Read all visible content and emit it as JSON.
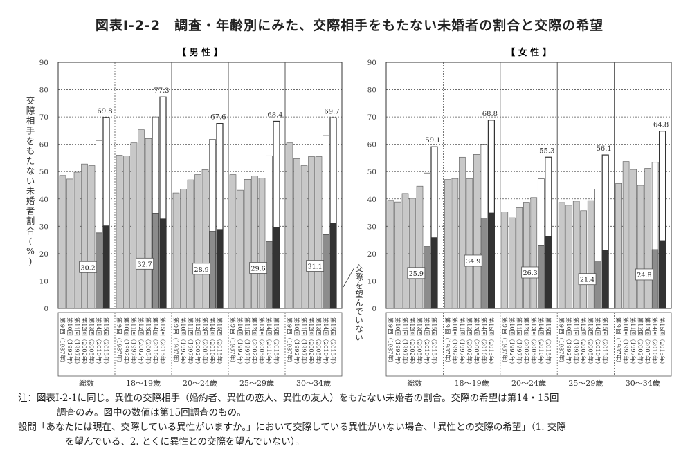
{
  "title": "図表Ⅰ-2-2　調査・年齢別にみた、交際相手をもたない未婚者の割合と交際の希望",
  "chart_data": [
    {
      "type": "bar",
      "panel_title": "【 男 性 】",
      "ylabel": "交際相手をもたない未婚者割合(%)",
      "ylim": [
        0,
        90
      ],
      "yticks": [
        "0",
        "10",
        "20",
        "30",
        "40",
        "50",
        "60",
        "70",
        "80",
        "90"
      ],
      "group_labels": [
        "総数",
        "18～19歳",
        "20～24歳",
        "25～29歳",
        "30～34歳"
      ],
      "survey_labels": [
        "第９回（1987年）",
        "第10回（1992年）",
        "第11回（1997年）",
        "第12回（2002年）",
        "第13回（2005年）",
        "第14回（2010年）",
        "第15回（2015年）"
      ],
      "series": [
        {
          "name": "交際相手をもたない未婚者割合",
          "values": [
            [
              48.6,
              47.3,
              49.8,
              52.8,
              52.2,
              61.4,
              69.8
            ],
            [
              56.0,
              55.7,
              60.5,
              65.3,
              62.1,
              70.0,
              77.3
            ],
            [
              42.2,
              43.6,
              47.0,
              48.9,
              50.7,
              61.8,
              67.6
            ],
            [
              48.9,
              43.2,
              47.2,
              48.4,
              47.6,
              55.8,
              68.4
            ],
            [
              60.5,
              54.8,
              52.2,
              55.5,
              55.5,
              63.2,
              69.7
            ]
          ]
        },
        {
          "name": "交際を望んでいない",
          "values": [
            [
              null,
              null,
              null,
              null,
              null,
              27.6,
              30.2
            ],
            [
              null,
              null,
              null,
              null,
              null,
              34.8,
              32.7
            ],
            [
              null,
              null,
              null,
              null,
              null,
              28.2,
              28.9
            ],
            [
              null,
              null,
              null,
              null,
              null,
              24.5,
              29.6
            ],
            [
              null,
              null,
              null,
              null,
              null,
              27.0,
              31.1
            ]
          ]
        }
      ],
      "top_labels": [
        "69.8",
        "77.3",
        "67.6",
        "68.4",
        "69.7"
      ],
      "inner_labels": [
        "30.2",
        "32.7",
        "28.9",
        "29.6",
        "31.1"
      ],
      "annotation": "交際を望んでいない"
    },
    {
      "type": "bar",
      "panel_title": "【 女 性 】",
      "ylim": [
        0,
        90
      ],
      "yticks": [
        "0",
        "10",
        "20",
        "30",
        "40",
        "50",
        "60",
        "70",
        "80",
        "90"
      ],
      "group_labels": [
        "総数",
        "18～19歳",
        "20～24歳",
        "25～29歳",
        "30～34歳"
      ],
      "survey_labels": [
        "第９回（1987年）",
        "第10回（1992年）",
        "第11回（1997年）",
        "第12回（2002年）",
        "第13回（2005年）",
        "第14回（2010年）",
        "第15回（2015年）"
      ],
      "series": [
        {
          "name": "交際相手をもたない未婚者割合",
          "values": [
            [
              39.5,
              38.9,
              42.0,
              40.2,
              44.7,
              49.5,
              59.1
            ],
            [
              47.1,
              47.5,
              55.3,
              47.4,
              56.3,
              60.0,
              68.8
            ],
            [
              35.3,
              33.1,
              36.8,
              38.8,
              40.5,
              47.4,
              55.3
            ],
            [
              38.7,
              37.7,
              39.2,
              35.7,
              39.4,
              43.6,
              56.1
            ],
            [
              45.7,
              53.7,
              50.8,
              45.0,
              51.2,
              53.4,
              64.8
            ]
          ]
        },
        {
          "name": "交際を望んでいない",
          "values": [
            [
              null,
              null,
              null,
              null,
              null,
              22.6,
              25.9
            ],
            [
              null,
              null,
              null,
              null,
              null,
              33.0,
              34.9
            ],
            [
              null,
              null,
              null,
              null,
              null,
              22.9,
              26.3
            ],
            [
              null,
              null,
              null,
              null,
              null,
              17.3,
              21.4
            ],
            [
              null,
              null,
              null,
              null,
              null,
              21.5,
              24.8
            ]
          ]
        }
      ],
      "top_labels": [
        "59.1",
        "68.8",
        "55.3",
        "56.1",
        "64.8"
      ],
      "inner_labels": [
        "25.9",
        "34.9",
        "26.3",
        "21.4",
        "24.8"
      ]
    }
  ],
  "notes": {
    "line1": "注：図表Ⅰ-2-1に同じ。異性の交際相手（婚約者、異性の恋人、異性の友人）をもたない未婚者の割合。交際の希望は第14・15回",
    "line2": "調査のみ。図中の数値は第15回調査のもの。",
    "line3": "設問「あなたには現在、交際している異性がいますか。」において交際している異性がいない場合、「異性との交際の希望」（1. 交際",
    "line4": "を望んでいる、2. とくに異性との交際を望んでいない）。"
  },
  "colors": {
    "bar_gray": "#c8c8c8",
    "bar_open": "#ffffff",
    "bar_dark": "#333333",
    "grid": "#555555",
    "axis": "#333333"
  }
}
